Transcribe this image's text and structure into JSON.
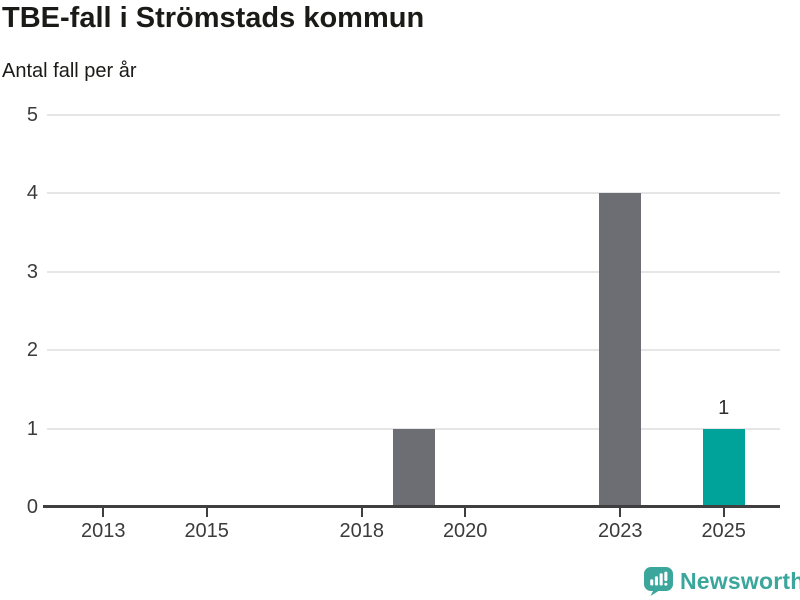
{
  "chart_data": {
    "type": "bar",
    "title": "TBE-fall i Strömstads kommun",
    "subtitle": "Antal fall per år",
    "xlabel": "",
    "ylabel": "Antal fall per år",
    "ylim": [
      0,
      5
    ],
    "y_ticks": [
      0,
      1,
      2,
      3,
      4,
      5
    ],
    "xlim": [
      2011.9,
      2026.1
    ],
    "x_ticks": [
      2013,
      2015,
      2018,
      2020,
      2023,
      2025
    ],
    "grid": "horizontal-light-gray, zero-baseline-dark",
    "legend": "none",
    "bars": [
      {
        "year": 2019,
        "value": 1,
        "color": "#6d6d74",
        "label": ""
      },
      {
        "year": 2023,
        "value": 4,
        "color": "#6d6d74",
        "label": ""
      },
      {
        "year": 2025,
        "value": 1,
        "color": "#00a39a",
        "label": "1"
      }
    ],
    "colors": {
      "default_bar": "#6d6d74",
      "highlight_bar": "#00a39a",
      "gridline": "#e6e6e6",
      "axis": "#3f3f3f",
      "tick_label": "#3b3b3b"
    }
  },
  "branding": {
    "logo_text": "Newsworthy",
    "logo_color": "#3aa69c",
    "icon": "bar-chart-speech-bubble"
  }
}
